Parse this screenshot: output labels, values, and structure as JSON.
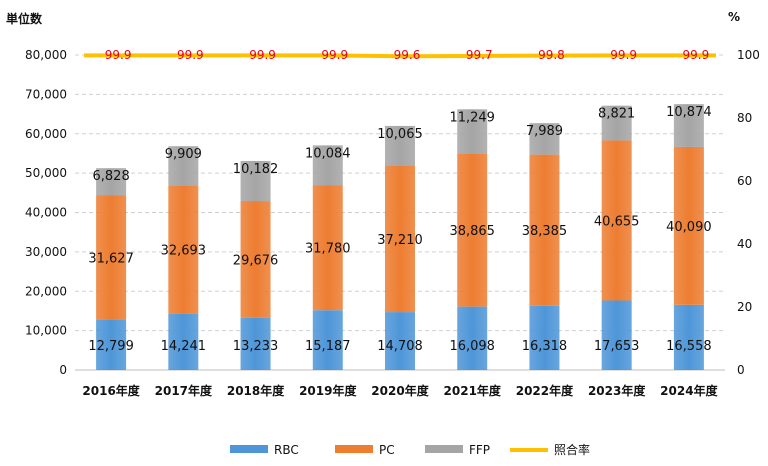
{
  "chart_data": {
    "type": "bar",
    "stacked": true,
    "categories": [
      "2016年度",
      "2017年度",
      "2018年度",
      "2019年度",
      "2020年度",
      "2021年度",
      "2022年度",
      "2023年度",
      "2024年度"
    ],
    "series": [
      {
        "name": "RBC",
        "color": "#4e96d8",
        "values": [
          12799,
          14241,
          13233,
          15187,
          14708,
          16098,
          16318,
          17653,
          16558
        ]
      },
      {
        "name": "PC",
        "color": "#ed7d31",
        "values": [
          31627,
          32693,
          29676,
          31780,
          37210,
          38865,
          38385,
          40655,
          40090
        ]
      },
      {
        "name": "FFP",
        "color": "#a5a5a5",
        "values": [
          6828,
          9909,
          10182,
          10084,
          10065,
          11249,
          7989,
          8821,
          10874
        ]
      }
    ],
    "line_series": {
      "name": "照合率",
      "color": "#ffc000",
      "label_color": "#e8001c",
      "values": [
        99.9,
        99.9,
        99.9,
        99.9,
        99.6,
        99.7,
        99.8,
        99.9,
        99.9
      ]
    },
    "y_left": {
      "unit_label": "単位数",
      "ylim": [
        0,
        80000
      ],
      "ticks": [
        "0",
        "10,000",
        "20,000",
        "30,000",
        "40,000",
        "50,000",
        "60,000",
        "70,000",
        "80,000"
      ]
    },
    "y_right": {
      "unit_label": "%",
      "ylim": [
        0,
        100
      ],
      "ticks": [
        "0",
        "20",
        "40",
        "60",
        "80",
        "100"
      ]
    },
    "value_labels": {
      "RBC": [
        "12,799",
        "14,241",
        "13,233",
        "15,187",
        "14,708",
        "16,098",
        "16,318",
        "17,653",
        "16,558"
      ],
      "PC": [
        "31,627",
        "32,693",
        "29,676",
        "31,780",
        "37,210",
        "38,865",
        "38,385",
        "40,655",
        "40,090"
      ],
      "FFP": [
        "6,828",
        "9,909",
        "10,182",
        "10,084",
        "10,065",
        "11,249",
        "7,989",
        "8,821",
        "10,874"
      ],
      "rate": [
        "99.9",
        "99.9",
        "99.9",
        "99.9",
        "99.6",
        "99.7",
        "99.8",
        "99.9",
        "99.9"
      ]
    },
    "legend": {
      "position": "bottom",
      "items": [
        "RBC",
        "PC",
        "FFP",
        "照合率"
      ]
    },
    "grid": true
  }
}
